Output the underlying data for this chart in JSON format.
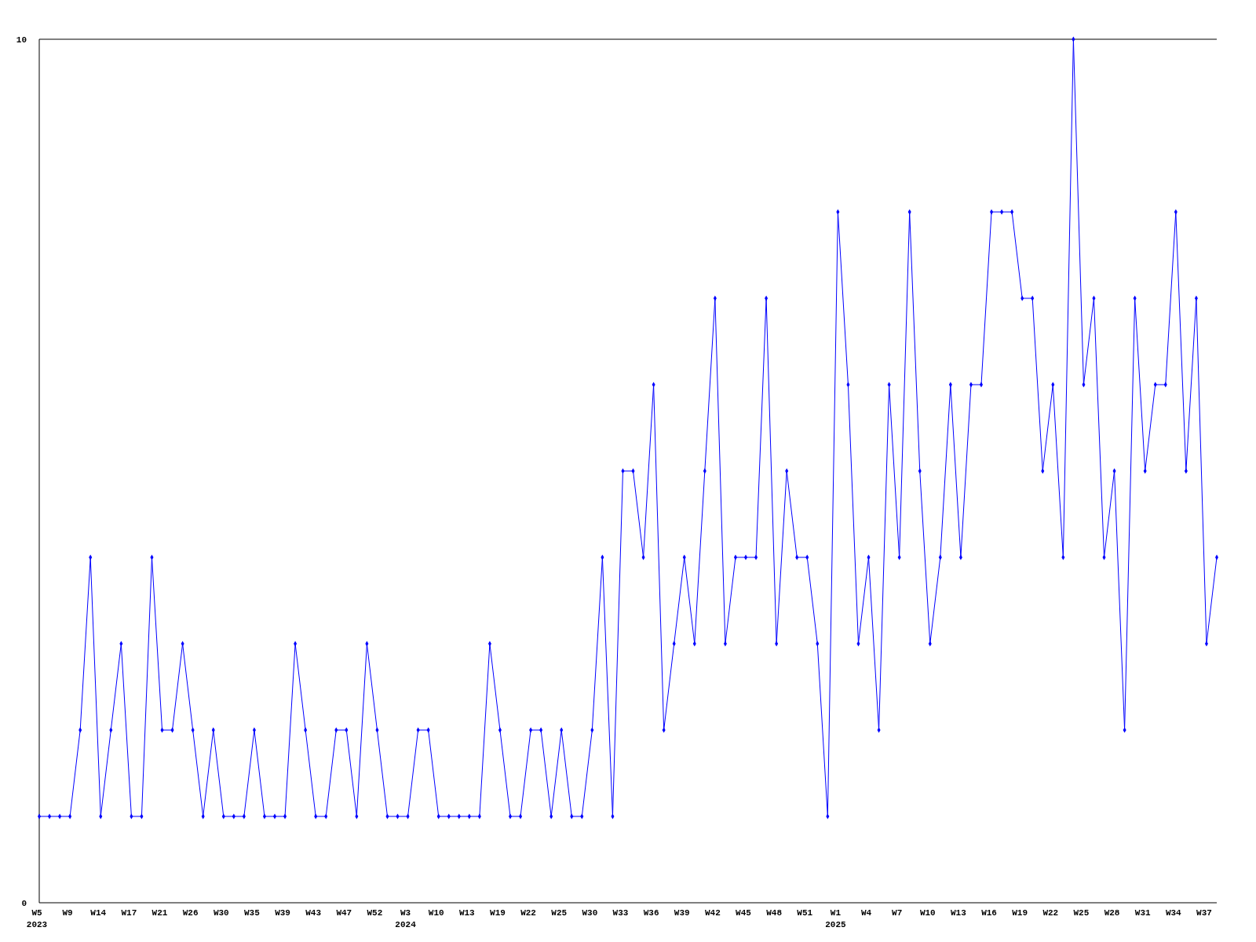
{
  "chart_data": {
    "type": "line",
    "categories": [
      "W5\n2023",
      null,
      null,
      "W9",
      null,
      null,
      "W14",
      null,
      null,
      "W17",
      null,
      null,
      "W21",
      null,
      null,
      "W26",
      null,
      null,
      "W30",
      null,
      null,
      "W35",
      null,
      null,
      "W39",
      null,
      null,
      "W43",
      null,
      null,
      "W47",
      null,
      null,
      "W52",
      null,
      null,
      "W3\n2024",
      null,
      null,
      "W10",
      null,
      null,
      "W13",
      null,
      null,
      "W19",
      null,
      null,
      "W22",
      null,
      null,
      "W25",
      null,
      null,
      "W30",
      null,
      null,
      "W33",
      null,
      null,
      "W36",
      null,
      null,
      "W39",
      null,
      null,
      "W42",
      null,
      null,
      "W45",
      null,
      null,
      "W48",
      null,
      null,
      "W51",
      null,
      null,
      "W1\n2025",
      null,
      null,
      "W4",
      null,
      null,
      "W7",
      null,
      null,
      "W10",
      null,
      null,
      "W13",
      null,
      null,
      "W16",
      null,
      null,
      "W19",
      null,
      null,
      "W22",
      null,
      null,
      "W25",
      null,
      null,
      "W28",
      null,
      null,
      "W31",
      null,
      null,
      "W34",
      null,
      null,
      "W37",
      null
    ],
    "series": [
      {
        "color": "#0000ff",
        "values": [
          1,
          1,
          1,
          1,
          2,
          4,
          1,
          2,
          3,
          1,
          1,
          4,
          2,
          2,
          3,
          2,
          1,
          2,
          1,
          1,
          1,
          2,
          1,
          1,
          1,
          3,
          2,
          1,
          1,
          2,
          2,
          1,
          3,
          2,
          1,
          1,
          1,
          2,
          2,
          1,
          1,
          1,
          1,
          1,
          3,
          2,
          1,
          1,
          2,
          2,
          1,
          2,
          1,
          1,
          2,
          4,
          1,
          5,
          5,
          4,
          6,
          2,
          3,
          4,
          3,
          5,
          7,
          3,
          4,
          4,
          4,
          7,
          3,
          5,
          4,
          4,
          3,
          1,
          8,
          6,
          3,
          4,
          2,
          6,
          4,
          8,
          5,
          3,
          4,
          6,
          4,
          6,
          6,
          8,
          8,
          8,
          7,
          7,
          5,
          6,
          4,
          10,
          6,
          7,
          4,
          5,
          2,
          7,
          5,
          6,
          6,
          8,
          5,
          7,
          3,
          4
        ]
      }
    ],
    "ylim": [
      0,
      10
    ],
    "yticks": [
      0,
      10
    ],
    "marker": "diamond",
    "line_style": "solid"
  }
}
